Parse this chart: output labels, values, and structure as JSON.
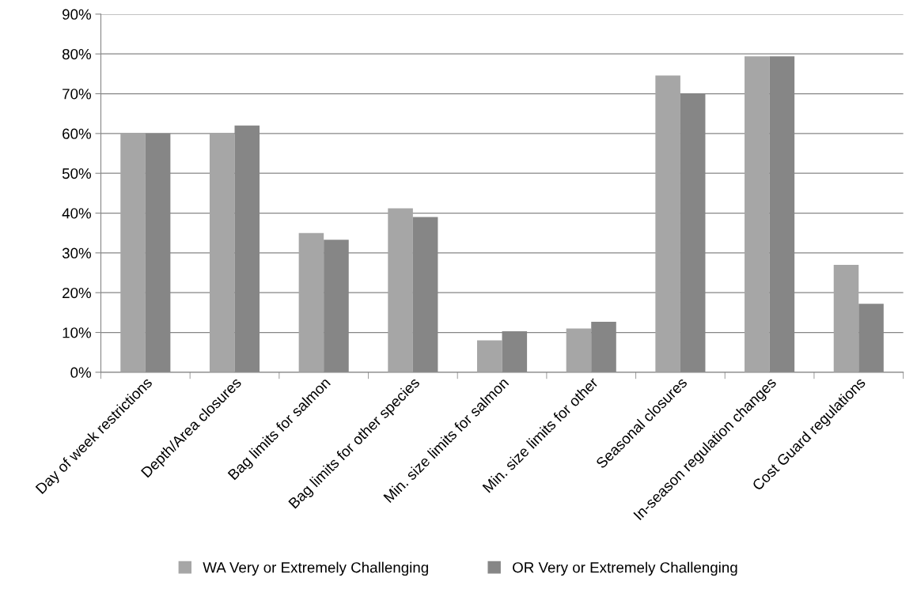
{
  "chart_data": {
    "type": "bar",
    "categories": [
      "Day of week restrictions",
      "Depth/Area closures",
      "Bag limits for salmon",
      "Bag limits for other species",
      "Min. size limits for salmon",
      "Min. size limits for other",
      "Seasonal closures",
      "In-season regulation changes",
      "Cost Guard regulations"
    ],
    "series": [
      {
        "name": "WA Very or Extremely Challenging",
        "color": "#a6a6a6",
        "values": [
          60,
          60,
          35,
          41.2,
          8,
          11,
          74.6,
          79.4,
          27
        ]
      },
      {
        "name": "OR Very or Extremely Challenging",
        "color": "#868686",
        "values": [
          60,
          62,
          33.3,
          39,
          10.3,
          12.7,
          70,
          79.4,
          17.2
        ]
      }
    ],
    "ylim": [
      0,
      90
    ],
    "yticks": [
      {
        "value": 0,
        "label": "0%"
      },
      {
        "value": 10,
        "label": "10%"
      },
      {
        "value": 20,
        "label": "20%"
      },
      {
        "value": 30,
        "label": "30%"
      },
      {
        "value": 40,
        "label": "40%"
      },
      {
        "value": 50,
        "label": "50%"
      },
      {
        "value": 60,
        "label": "60%"
      },
      {
        "value": 70,
        "label": "70%"
      },
      {
        "value": 80,
        "label": "80%"
      },
      {
        "value": 90,
        "label": "90%"
      }
    ],
    "grid": "y",
    "legend": "bottom"
  }
}
